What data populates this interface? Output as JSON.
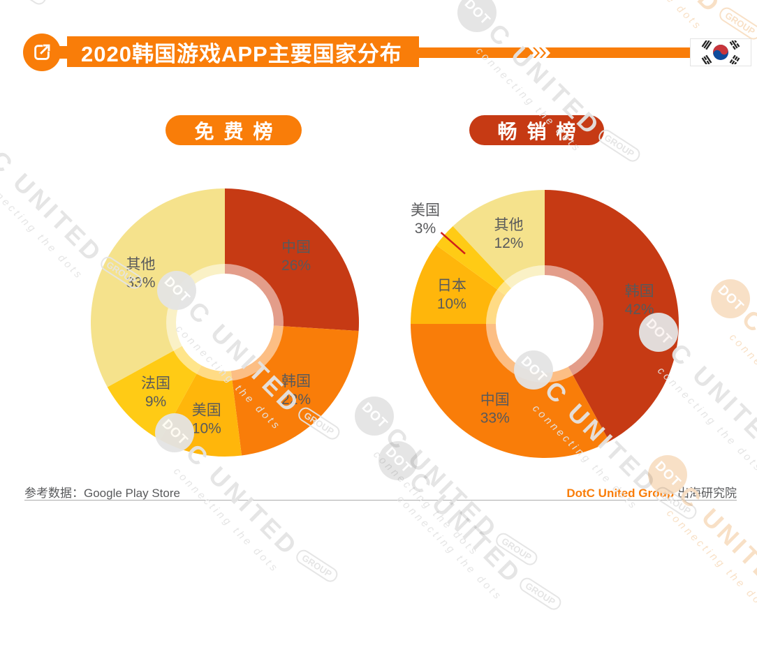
{
  "header": {
    "title": "2020韩国游戏APP主要国家分布",
    "flag": "south-korea-flag"
  },
  "chart_data": [
    {
      "type": "pie",
      "donut": true,
      "title": "免费榜",
      "badge_color": "#F97D09",
      "labels": [
        "中国",
        "韩国",
        "美国",
        "法国",
        "其他"
      ],
      "values": [
        26,
        22,
        10,
        9,
        33
      ],
      "colors": [
        "#C63A14",
        "#F97D09",
        "#FFB60B",
        "#FFCB15",
        "#F5E28C"
      ],
      "start_angle": 0,
      "direction": "clockwise",
      "outside_labels": []
    },
    {
      "type": "pie",
      "donut": true,
      "title": "畅销榜",
      "badge_color": "#C63A14",
      "labels": [
        "韩国",
        "中国",
        "日本",
        "美国",
        "其他"
      ],
      "values": [
        42,
        33,
        10,
        3,
        12
      ],
      "colors": [
        "#C63A14",
        "#F97D09",
        "#FFB60B",
        "#FFCB15",
        "#F5E28C"
      ],
      "start_angle": 0,
      "direction": "clockwise",
      "outside_labels": [
        "美国"
      ]
    }
  ],
  "palette": {
    "accent": "#F97D09",
    "vermillion": "#C63A14",
    "amber": "#FFB60B",
    "yellow": "#FFCB15",
    "pale_yellow": "#F5E28C",
    "label_gray": "#58595B",
    "leader_red": "#D01F1A",
    "watermark_gray": "#E4E4E4",
    "watermark_orange": "#F8DFC3"
  },
  "footer": {
    "source": "参考数据：Google Play Store",
    "brand": "DotC United Group",
    "brand_suffix": "出海研究院"
  },
  "watermark": {
    "dot": "DOT",
    "name": "C UNITED",
    "badge": "GROUP",
    "tagline": "connecting the dots"
  }
}
